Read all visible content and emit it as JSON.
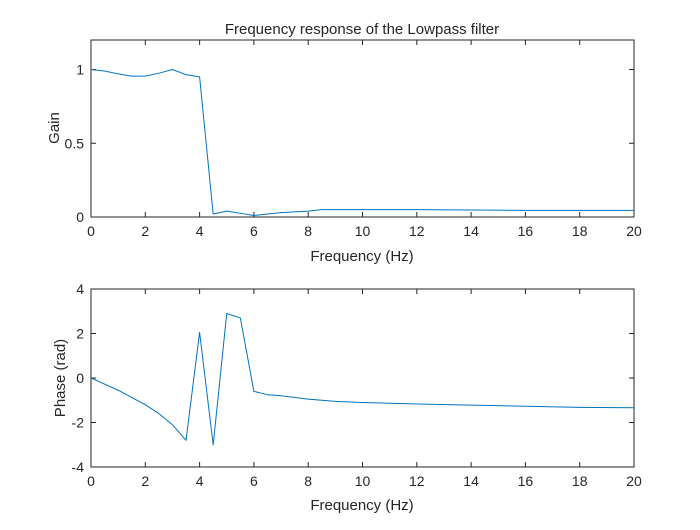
{
  "chart_data": [
    {
      "type": "line",
      "title": "Frequency response of the Lowpass filter",
      "xlabel": "Frequency (Hz)",
      "ylabel": "Gain",
      "xlim": [
        0,
        20
      ],
      "ylim": [
        0,
        1.2
      ],
      "xticks": [
        0,
        2,
        4,
        6,
        8,
        10,
        12,
        14,
        16,
        18,
        20
      ],
      "yticks": [
        0,
        0.5,
        1
      ],
      "grid": false,
      "series": [
        {
          "color": "#0072BD",
          "x": [
            0,
            0.5,
            1,
            1.5,
            2,
            2.5,
            3,
            3.5,
            4,
            4.5,
            5,
            5.5,
            6,
            6.5,
            7,
            7.5,
            8,
            8.5,
            9,
            10,
            12,
            16,
            20
          ],
          "y": [
            1.0,
            0.99,
            0.97,
            0.955,
            0.955,
            0.975,
            1.0,
            0.965,
            0.95,
            0.02,
            0.04,
            0.025,
            0.01,
            0.02,
            0.03,
            0.035,
            0.04,
            0.05,
            0.05,
            0.05,
            0.05,
            0.045,
            0.045
          ]
        }
      ]
    },
    {
      "type": "line",
      "title": "",
      "xlabel": "Frequency (Hz)",
      "ylabel": "Phase (rad)",
      "xlim": [
        0,
        20
      ],
      "ylim": [
        -4,
        4
      ],
      "xticks": [
        0,
        2,
        4,
        6,
        8,
        10,
        12,
        14,
        16,
        18,
        20
      ],
      "yticks": [
        -4,
        -2,
        0,
        2,
        4
      ],
      "grid": false,
      "series": [
        {
          "color": "#0072BD",
          "x": [
            0,
            1,
            2,
            2.5,
            3,
            3.5,
            4,
            4.5,
            5,
            5.5,
            6,
            6.5,
            7,
            8,
            9,
            10,
            12,
            14,
            16,
            18,
            20
          ],
          "y": [
            0,
            -0.55,
            -1.2,
            -1.6,
            -2.1,
            -2.8,
            2.05,
            -3.0,
            2.9,
            2.7,
            -0.6,
            -0.75,
            -0.8,
            -0.95,
            -1.05,
            -1.1,
            -1.17,
            -1.22,
            -1.27,
            -1.32,
            -1.34
          ]
        }
      ]
    }
  ]
}
